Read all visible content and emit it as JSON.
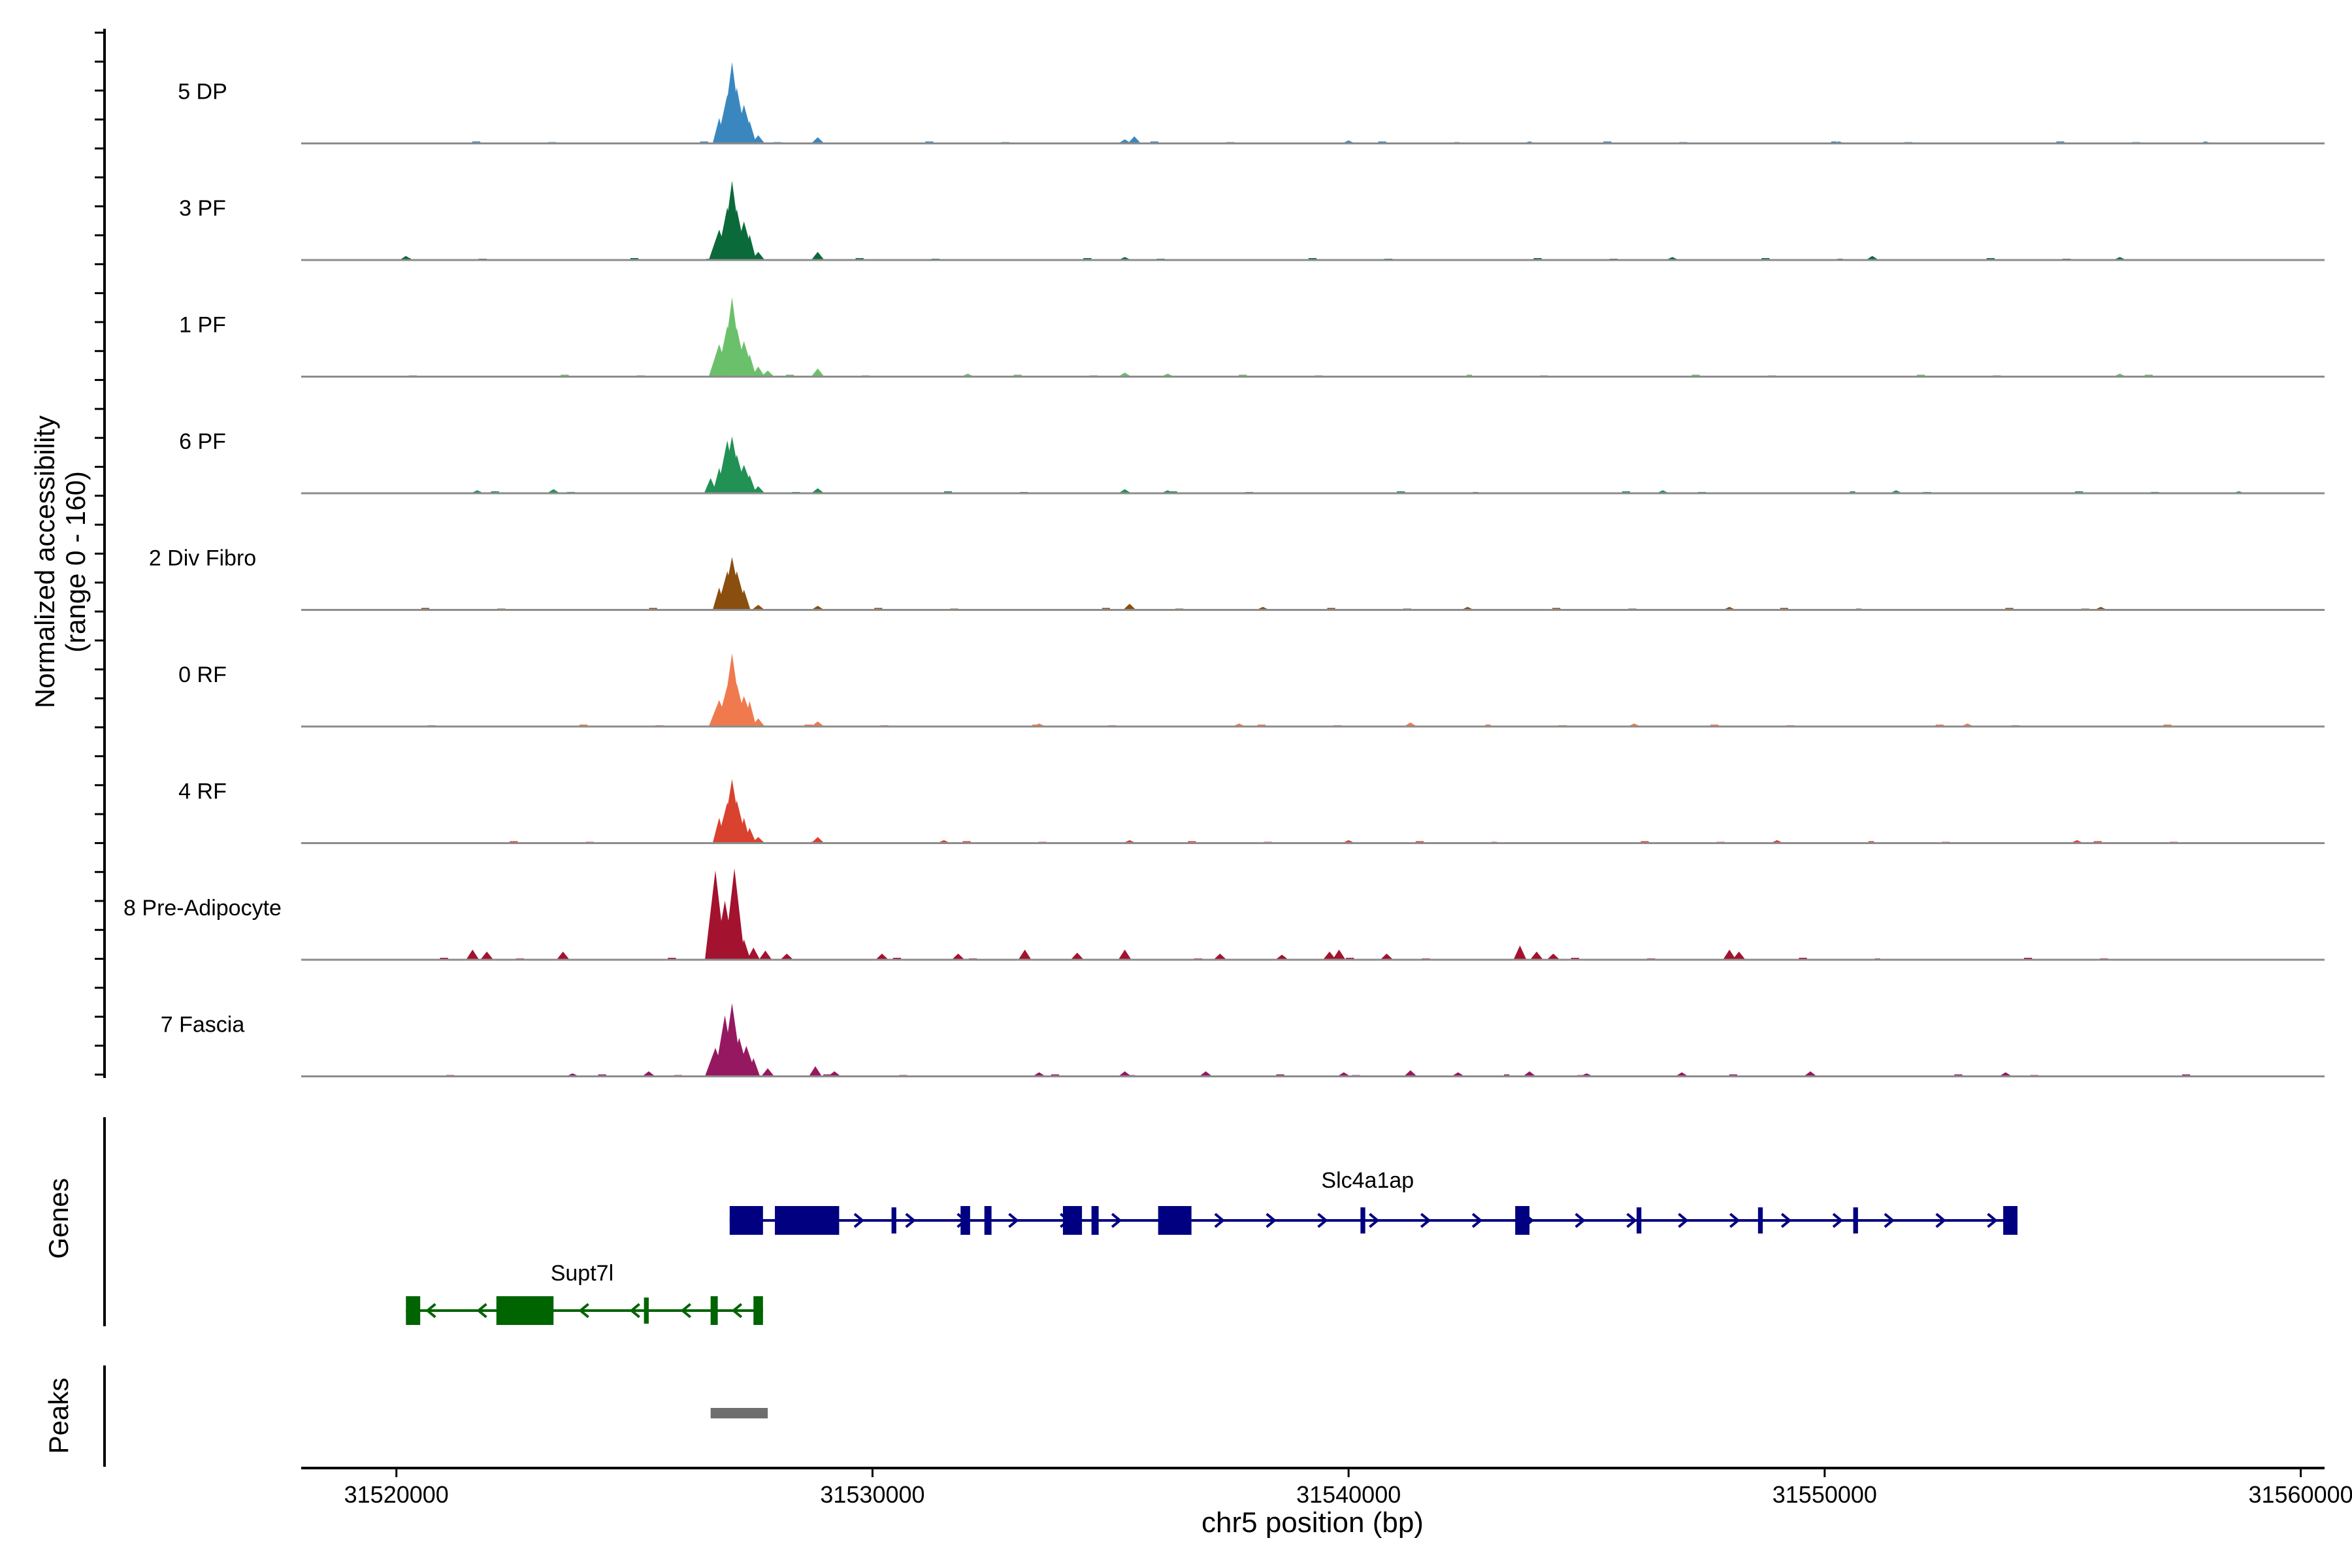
{
  "chart_data": {
    "type": "area",
    "title": "",
    "ylabel_line1": "Normalized accessibility",
    "ylabel_line2": "(range 0 - 160)",
    "y_range": [
      0,
      160
    ],
    "xlabel": "chr5 position (bp)",
    "xlim": [
      31518000,
      31560500
    ],
    "x_ticks": [
      31520000,
      31530000,
      31540000,
      31550000,
      31560000
    ],
    "x_tick_labels": [
      "31520000",
      "31530000",
      "31540000",
      "31550000",
      "31560000"
    ],
    "panel_labels": {
      "genes": "Genes",
      "peaks": "Peaks"
    },
    "tracks": [
      {
        "name": "5 DP",
        "color": "#3a87c0",
        "peaks": [
          [
            31526780,
            25
          ],
          [
            31526950,
            48
          ],
          [
            31527050,
            80
          ],
          [
            31527150,
            55
          ],
          [
            31527300,
            38
          ],
          [
            31527420,
            22
          ],
          [
            31527600,
            8
          ],
          [
            31528850,
            6
          ],
          [
            31535300,
            4
          ],
          [
            31535500,
            7
          ],
          [
            31540000,
            3
          ],
          [
            31543800,
            2
          ],
          [
            31550300,
            2
          ],
          [
            31558000,
            2
          ]
        ]
      },
      {
        "name": "3 PF",
        "color": "#0b6a3a",
        "peaks": [
          [
            31520200,
            4
          ],
          [
            31526780,
            30
          ],
          [
            31526950,
            52
          ],
          [
            31527050,
            78
          ],
          [
            31527150,
            50
          ],
          [
            31527300,
            38
          ],
          [
            31527420,
            25
          ],
          [
            31527600,
            8
          ],
          [
            31528850,
            8
          ],
          [
            31535300,
            3
          ],
          [
            31546800,
            3
          ],
          [
            31551000,
            4
          ],
          [
            31556200,
            3
          ]
        ]
      },
      {
        "name": "1 PF",
        "color": "#6bc06b",
        "peaks": [
          [
            31526780,
            32
          ],
          [
            31526950,
            50
          ],
          [
            31527050,
            78
          ],
          [
            31527150,
            48
          ],
          [
            31527300,
            35
          ],
          [
            31527420,
            22
          ],
          [
            31527600,
            10
          ],
          [
            31527800,
            6
          ],
          [
            31528850,
            8
          ],
          [
            31532000,
            3
          ],
          [
            31535300,
            4
          ],
          [
            31536200,
            3
          ],
          [
            31556200,
            3
          ]
        ]
      },
      {
        "name": "6 PF",
        "color": "#219154",
        "peaks": [
          [
            31521700,
            3
          ],
          [
            31523300,
            4
          ],
          [
            31526600,
            15
          ],
          [
            31526780,
            25
          ],
          [
            31526950,
            52
          ],
          [
            31527050,
            56
          ],
          [
            31527150,
            38
          ],
          [
            31527300,
            28
          ],
          [
            31527420,
            18
          ],
          [
            31527600,
            7
          ],
          [
            31528850,
            5
          ],
          [
            31535300,
            4
          ],
          [
            31536200,
            3
          ],
          [
            31546600,
            3
          ],
          [
            31551500,
            3
          ],
          [
            31558700,
            2
          ]
        ]
      },
      {
        "name": "2 Div Fibro",
        "color": "#8a4e0e",
        "peaks": [
          [
            31526780,
            22
          ],
          [
            31526950,
            38
          ],
          [
            31527050,
            52
          ],
          [
            31527150,
            38
          ],
          [
            31527300,
            20
          ],
          [
            31527600,
            5
          ],
          [
            31528850,
            4
          ],
          [
            31535400,
            6
          ],
          [
            31538200,
            3
          ],
          [
            31542500,
            3
          ],
          [
            31548000,
            3
          ],
          [
            31555800,
            3
          ]
        ]
      },
      {
        "name": "0 RF",
        "color": "#f07a4d",
        "peaks": [
          [
            31526780,
            26
          ],
          [
            31526950,
            40
          ],
          [
            31527050,
            72
          ],
          [
            31527150,
            42
          ],
          [
            31527300,
            30
          ],
          [
            31527420,
            25
          ],
          [
            31527600,
            8
          ],
          [
            31528850,
            5
          ],
          [
            31533500,
            3
          ],
          [
            31537700,
            3
          ],
          [
            31541300,
            4
          ],
          [
            31546000,
            3
          ],
          [
            31553000,
            3
          ]
        ]
      },
      {
        "name": "4 RF",
        "color": "#d8422f",
        "peaks": [
          [
            31526780,
            25
          ],
          [
            31526950,
            40
          ],
          [
            31527050,
            63
          ],
          [
            31527150,
            42
          ],
          [
            31527300,
            25
          ],
          [
            31527420,
            15
          ],
          [
            31527600,
            6
          ],
          [
            31528850,
            6
          ],
          [
            31531500,
            3
          ],
          [
            31535400,
            3
          ],
          [
            31540000,
            3
          ],
          [
            31549000,
            3
          ],
          [
            31555300,
            3
          ]
        ]
      },
      {
        "name": "8 Pre-Adipocyte",
        "color": "#a3122e",
        "peaks": [
          [
            31521600,
            10
          ],
          [
            31521900,
            8
          ],
          [
            31523500,
            8
          ],
          [
            31526700,
            88
          ],
          [
            31526900,
            58
          ],
          [
            31527100,
            90
          ],
          [
            31527300,
            20
          ],
          [
            31527500,
            12
          ],
          [
            31527750,
            9
          ],
          [
            31528200,
            6
          ],
          [
            31530200,
            6
          ],
          [
            31531800,
            6
          ],
          [
            31533200,
            10
          ],
          [
            31534300,
            7
          ],
          [
            31535300,
            10
          ],
          [
            31537300,
            6
          ],
          [
            31538600,
            5
          ],
          [
            31539600,
            8
          ],
          [
            31539800,
            10
          ],
          [
            31540800,
            6
          ],
          [
            31543600,
            14
          ],
          [
            31543950,
            8
          ],
          [
            31544300,
            6
          ],
          [
            31548000,
            10
          ],
          [
            31548200,
            8
          ]
        ]
      },
      {
        "name": "7 Fascia",
        "color": "#961860",
        "peaks": [
          [
            31523700,
            3
          ],
          [
            31525300,
            5
          ],
          [
            31526700,
            28
          ],
          [
            31526900,
            60
          ],
          [
            31527050,
            72
          ],
          [
            31527200,
            38
          ],
          [
            31527350,
            30
          ],
          [
            31527500,
            18
          ],
          [
            31527800,
            8
          ],
          [
            31528800,
            10
          ],
          [
            31529200,
            5
          ],
          [
            31533500,
            4
          ],
          [
            31535300,
            5
          ],
          [
            31537000,
            5
          ],
          [
            31539900,
            4
          ],
          [
            31541300,
            6
          ],
          [
            31542300,
            4
          ],
          [
            31543800,
            5
          ],
          [
            31545000,
            3
          ],
          [
            31547000,
            4
          ],
          [
            31549700,
            5
          ],
          [
            31553800,
            4
          ]
        ]
      }
    ],
    "genes": [
      {
        "name": "Slc4a1ap",
        "strand": "+",
        "color": "#000080",
        "start": 31527000,
        "end": 31554050,
        "exons": [
          [
            31527000,
            31527700,
            "thick"
          ],
          [
            31527950,
            31529300,
            "thick"
          ],
          [
            31530400,
            31530500,
            "thin"
          ],
          [
            31531850,
            31532050,
            "thick"
          ],
          [
            31532350,
            31532500,
            "thick"
          ],
          [
            31534000,
            31534400,
            "thick"
          ],
          [
            31534600,
            31534750,
            "thick"
          ],
          [
            31536000,
            31536700,
            "thick"
          ],
          [
            31540250,
            31540350,
            "thin"
          ],
          [
            31543500,
            31543800,
            "thick"
          ],
          [
            31546050,
            31546150,
            "thin"
          ],
          [
            31548600,
            31548700,
            "thin"
          ],
          [
            31550600,
            31550700,
            "thin"
          ],
          [
            31553750,
            31554050,
            "thick"
          ]
        ]
      },
      {
        "name": "Supt7l",
        "strand": "-",
        "color": "#006400",
        "start": 31520200,
        "end": 31527700,
        "exons": [
          [
            31520200,
            31520500,
            "thick"
          ],
          [
            31522100,
            31523300,
            "thick"
          ],
          [
            31525200,
            31525300,
            "thin"
          ],
          [
            31526600,
            31526750,
            "thick"
          ],
          [
            31527500,
            31527700,
            "thick"
          ]
        ]
      }
    ],
    "peak_regions": [
      [
        31526600,
        31527800
      ]
    ],
    "peak_color": "#6e6e6e"
  }
}
